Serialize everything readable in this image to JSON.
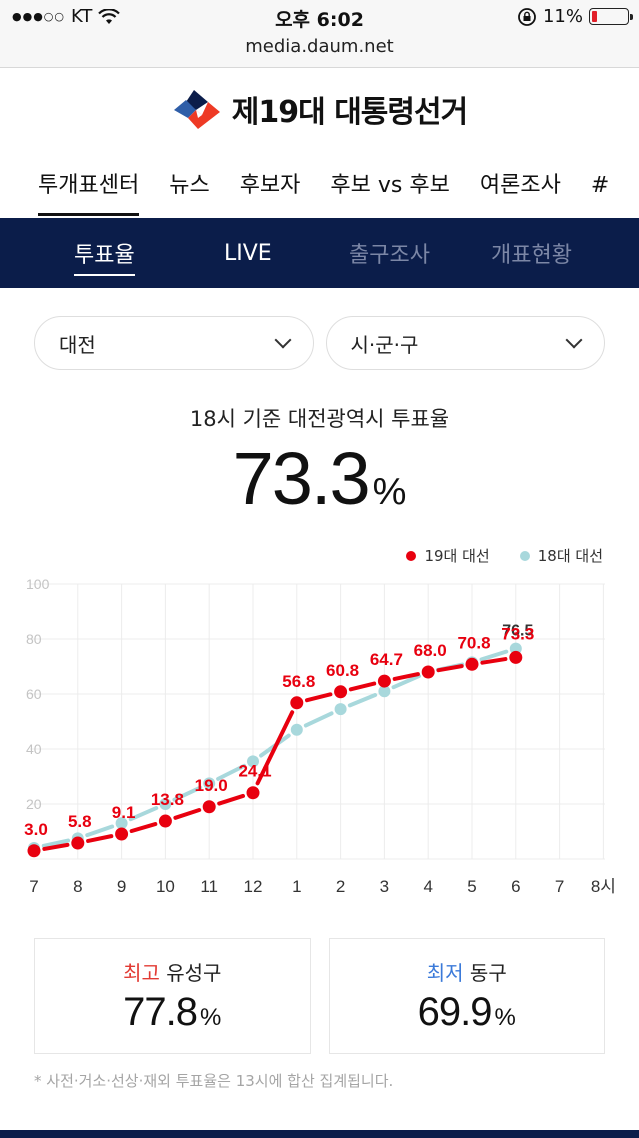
{
  "status_bar": {
    "carrier": "KT",
    "signal_dots": "●●●○○",
    "time": "오후 6:02",
    "battery": "11%",
    "url": "media.daum.net"
  },
  "header": {
    "title": "제19대 대통령선거"
  },
  "top_nav": {
    "items": [
      {
        "label": "투개표센터",
        "active": true
      },
      {
        "label": "뉴스"
      },
      {
        "label": "후보자"
      },
      {
        "label": "후보 vs 후보"
      },
      {
        "label": "여론조사"
      },
      {
        "label": "#"
      }
    ]
  },
  "sub_nav": {
    "items": [
      {
        "label": "투표율",
        "active": true
      },
      {
        "label": "LIVE"
      },
      {
        "label": "출구조사"
      },
      {
        "label": "개표현황"
      }
    ]
  },
  "filters": {
    "region": "대전",
    "district": "시·군·구"
  },
  "turnout": {
    "caption": "18시 기준 대전광역시 투표율",
    "value": "73.3",
    "unit": "%"
  },
  "legend": {
    "series19": "19대 대선",
    "series18": "18대 대선"
  },
  "colors": {
    "series19": "#e8000f",
    "series18": "#a8d8dc",
    "navy": "#0b1d4a",
    "high": "#e23a33",
    "low": "#3b7ad9"
  },
  "chart_data": {
    "type": "line",
    "title": "",
    "xlabel": "",
    "ylabel": "",
    "x": [
      "7",
      "8",
      "9",
      "10",
      "11",
      "12",
      "1",
      "2",
      "3",
      "4",
      "5",
      "6",
      "7",
      "8시"
    ],
    "yticks": [
      "100",
      "80",
      "60",
      "40",
      "20"
    ],
    "ylim": [
      0,
      100
    ],
    "grid": true,
    "legend_position": "top-right",
    "series": [
      {
        "name": "19대 대선",
        "values": [
          3.0,
          5.8,
          9.1,
          13.8,
          19.0,
          24.1,
          56.8,
          60.8,
          64.7,
          68.0,
          70.8,
          73.3
        ],
        "labels": [
          "3.0",
          "5.8",
          "9.1",
          "13.8",
          "19.0",
          "24.1",
          "56.8",
          "60.8",
          "64.7",
          "68.0",
          "70.8",
          "73.3"
        ]
      },
      {
        "name": "18대 대선",
        "values": [
          4.0,
          7.5,
          13.0,
          20.0,
          27.5,
          35.5,
          47.0,
          54.5,
          61.0,
          68.0,
          71.5,
          76.5
        ],
        "labels": [
          "",
          "",
          "",
          "",
          "",
          "",
          "",
          "",
          "",
          "",
          "",
          "76.5"
        ]
      }
    ]
  },
  "stats": {
    "high": {
      "tag": "최고",
      "name": "유성구",
      "value": "77.8",
      "unit": "%"
    },
    "low": {
      "tag": "최저",
      "name": "동구",
      "value": "69.9",
      "unit": "%"
    }
  },
  "footnote": "* 사전·거소·선상·재외 투표율은 13시에 합산 집계됩니다."
}
